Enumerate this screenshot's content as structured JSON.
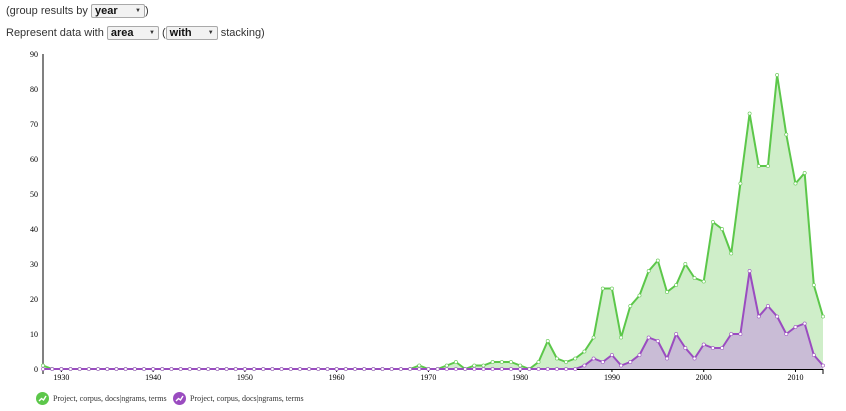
{
  "controls": {
    "group_prefix": "(group results by",
    "group_value": "year",
    "group_suffix": ")",
    "represent_prefix": "Represent data with",
    "represent_value": "area",
    "open_paren": "(",
    "stacking_value": "with",
    "stacking_suffix": "stacking)"
  },
  "colors": {
    "green": "#5cc74a",
    "green_fill": "#cfeec9",
    "purple": "#9a4cc0",
    "purple_fill": "#c9bcd6"
  },
  "chart_data": {
    "type": "area",
    "stacked": true,
    "ylim": [
      0,
      90
    ],
    "xlim": [
      1928,
      2013
    ],
    "y_ticks": [
      "0",
      "10",
      "20",
      "30",
      "40",
      "50",
      "60",
      "70",
      "80",
      "90"
    ],
    "x_ticks": [
      "1930",
      "1940",
      "1950",
      "1960",
      "1970",
      "1980",
      "1990",
      "2000",
      "2010"
    ],
    "x": [
      1928,
      1929,
      1930,
      1931,
      1932,
      1933,
      1934,
      1935,
      1936,
      1937,
      1938,
      1939,
      1940,
      1941,
      1942,
      1943,
      1944,
      1945,
      1946,
      1947,
      1948,
      1949,
      1950,
      1951,
      1952,
      1953,
      1954,
      1955,
      1956,
      1957,
      1958,
      1959,
      1960,
      1961,
      1962,
      1963,
      1964,
      1965,
      1966,
      1967,
      1968,
      1969,
      1970,
      1971,
      1972,
      1973,
      1974,
      1975,
      1976,
      1977,
      1978,
      1979,
      1980,
      1981,
      1982,
      1983,
      1984,
      1985,
      1986,
      1987,
      1988,
      1989,
      1990,
      1991,
      1992,
      1993,
      1994,
      1995,
      1996,
      1997,
      1998,
      1999,
      2000,
      2001,
      2002,
      2003,
      2004,
      2005,
      2006,
      2007,
      2008,
      2009,
      2010,
      2011,
      2012,
      2013
    ],
    "series": [
      {
        "name": "Project, corpus, docs|ngrams, terms",
        "color": "green",
        "stack_totals": [
          1,
          0,
          0,
          0,
          0,
          0,
          0,
          0,
          0,
          0,
          0,
          0,
          0,
          0,
          0,
          0,
          0,
          0,
          0,
          0,
          0,
          0,
          0,
          0,
          0,
          0,
          0,
          0,
          0,
          0,
          0,
          0,
          0,
          0,
          0,
          0,
          0,
          0,
          0,
          0,
          0,
          1,
          0,
          0,
          1,
          2,
          0,
          1,
          1,
          2,
          2,
          2,
          1,
          0,
          2,
          8,
          3,
          2,
          3,
          5,
          9,
          23,
          23,
          9,
          18,
          21,
          28,
          31,
          22,
          24,
          30,
          26,
          25,
          42,
          40,
          33,
          53,
          73,
          58,
          58,
          84,
          67,
          53,
          56,
          24,
          15
        ]
      },
      {
        "name": "Project, corpus, docs|ngrams, terms",
        "color": "purple",
        "values": [
          0,
          0,
          0,
          0,
          0,
          0,
          0,
          0,
          0,
          0,
          0,
          0,
          0,
          0,
          0,
          0,
          0,
          0,
          0,
          0,
          0,
          0,
          0,
          0,
          0,
          0,
          0,
          0,
          0,
          0,
          0,
          0,
          0,
          0,
          0,
          0,
          0,
          0,
          0,
          0,
          0,
          0,
          0,
          0,
          0,
          0,
          0,
          0,
          0,
          0,
          0,
          0,
          0,
          0,
          0,
          0,
          0,
          0,
          0,
          1,
          3,
          2,
          4,
          1,
          2,
          4,
          9,
          8,
          3,
          10,
          6,
          3,
          7,
          6,
          6,
          10,
          10,
          28,
          15,
          18,
          15,
          10,
          12,
          13,
          4,
          1
        ]
      }
    ]
  }
}
